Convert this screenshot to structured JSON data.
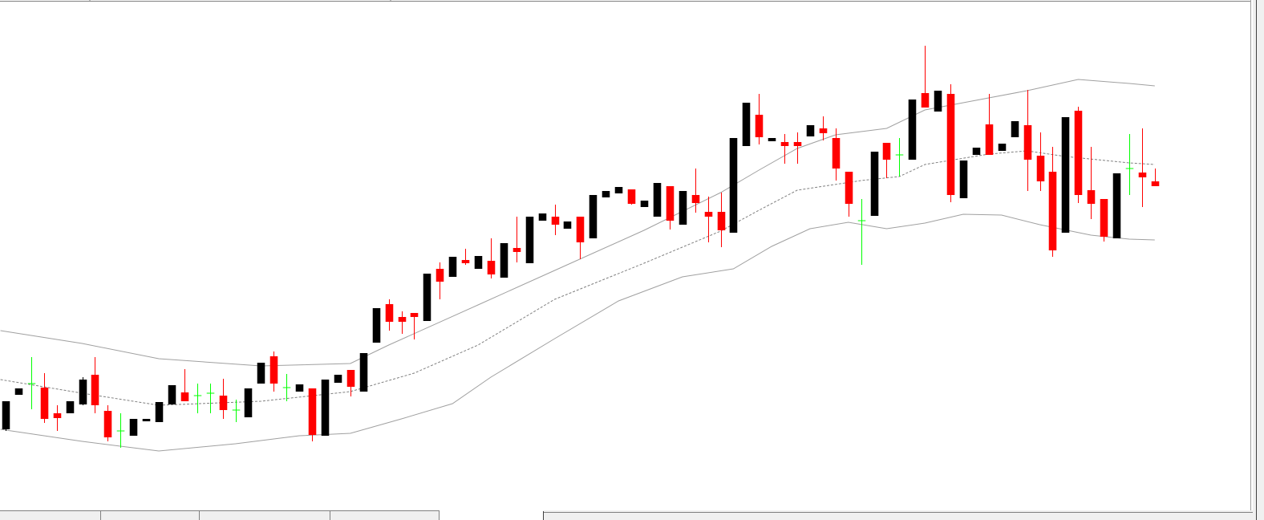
{
  "chart_data": {
    "type": "candlestick",
    "xlim": [
      -0.44,
      97.55
    ],
    "ylim": [
      0,
      640
    ],
    "up_color": "#000000",
    "down_color": "#ff0000",
    "doji_color": "#00ff00",
    "open": [
      105,
      148,
      162,
      157,
      125,
      125,
      136,
      173,
      128,
      103,
      97,
      115,
      114,
      136,
      151,
      147,
      150,
      147,
      129,
      120,
      162,
      196,
      157,
      152,
      156,
      97,
      163,
      179,
      152,
      213,
      261,
      245,
      250,
      240,
      305,
      295,
      316,
      305,
      315,
      294,
      331,
      312,
      365,
      370,
      355,
      370,
      343,
      394,
      399,
      404,
      382,
      370,
      408,
      360,
      397,
      376,
      376,
      350,
      458,
      497,
      464,
      463,
      463,
      470,
      480,
      468,
      426,
      365,
      371,
      462,
      447,
      441,
      524,
      501,
      523,
      393,
      447,
      485,
      452,
      469,
      484,
      446,
      426,
      350,
      502,
      403,
      392,
      343,
      430,
      425,
      414
    ],
    "high": [
      140,
      156,
      195,
      175,
      135,
      140,
      170,
      195,
      135,
      125,
      118,
      118,
      139,
      160,
      180,
      162,
      162,
      168,
      142,
      156,
      188,
      202,
      174,
      161,
      156,
      167,
      173,
      179,
      200,
      256,
      267,
      252,
      250,
      299,
      313,
      320,
      330,
      321,
      343,
      337,
      370,
      370,
      374,
      385,
      364,
      370,
      397,
      402,
      407,
      404,
      390,
      412,
      408,
      402,
      430,
      395,
      400,
      468,
      512,
      523,
      468,
      473,
      475,
      484,
      495,
      480,
      426,
      392,
      451,
      462,
      468,
      516,
      583,
      527,
      535,
      440,
      456,
      523,
      461,
      489,
      528,
      475,
      457,
      494,
      507,
      457,
      392,
      424,
      473,
      480,
      430
    ],
    "low": [
      103,
      148,
      130,
      113,
      103,
      125,
      135,
      125,
      90,
      82,
      97,
      115,
      114,
      136,
      140,
      125,
      125,
      118,
      114,
      120,
      162,
      152,
      140,
      152,
      90,
      97,
      163,
      146,
      152,
      213,
      228,
      224,
      217,
      240,
      267,
      295,
      310,
      305,
      293,
      294,
      313,
      312,
      365,
      347,
      355,
      317,
      343,
      394,
      399,
      385,
      382,
      370,
      354,
      360,
      375,
      338,
      332,
      350,
      458,
      460,
      464,
      436,
      436,
      470,
      465,
      415,
      370,
      310,
      371,
      418,
      420,
      441,
      506,
      501,
      388,
      393,
      447,
      447,
      452,
      469,
      402,
      402,
      320,
      350,
      387,
      367,
      339,
      343,
      397,
      382,
      408
    ],
    "close": [
      140,
      156,
      162,
      118,
      119,
      140,
      167,
      135,
      95,
      103,
      118,
      118,
      139,
      160,
      140,
      147,
      150,
      129,
      129,
      156,
      188,
      162,
      157,
      161,
      98,
      167,
      173,
      158,
      200,
      256,
      239,
      239,
      245,
      299,
      289,
      320,
      312,
      321,
      298,
      337,
      326,
      370,
      374,
      360,
      364,
      338,
      397,
      402,
      407,
      386,
      390,
      412,
      365,
      402,
      387,
      370,
      353,
      468,
      512,
      469,
      468,
      458,
      458,
      484,
      474,
      430,
      386,
      365,
      451,
      441,
      447,
      516,
      506,
      527,
      397,
      440,
      456,
      447,
      461,
      489,
      441,
      414,
      328,
      494,
      397,
      386,
      345,
      424,
      430,
      419,
      408
    ],
    "overlays": [
      {
        "color": "#a0a0a0",
        "dashed": false,
        "x": [
          -0.4,
          6,
          12,
          20,
          27,
          30,
          37,
          43,
          50,
          56,
          59,
          62,
          65,
          69,
          72,
          75,
          80,
          84,
          88,
          90
        ],
        "values": [
          228,
          212,
          193,
          184,
          187,
          210,
          260,
          303,
          353,
          400,
          428,
          455,
          472,
          480,
          503,
          512,
          527,
          541,
          536,
          533
        ]
      },
      {
        "color": "#808080",
        "dashed": true,
        "x": [
          -0.4,
          6,
          12,
          20,
          27,
          32,
          37,
          43,
          50,
          56,
          59,
          62,
          67,
          70,
          72,
          77,
          80,
          83,
          88,
          90
        ],
        "values": [
          167,
          150,
          135,
          140,
          152,
          175,
          210,
          267,
          312,
          352,
          378,
          403,
          415,
          420,
          435,
          448,
          452,
          445,
          437,
          435
        ]
      },
      {
        "color": "#a0a0a0",
        "dashed": false,
        "x": [
          -0.4,
          6,
          12,
          18,
          23,
          27,
          31,
          35,
          38,
          43,
          48,
          53,
          57,
          60,
          63,
          66,
          69,
          72,
          75,
          78,
          81,
          85,
          88,
          90
        ],
        "values": [
          105,
          90,
          78,
          87,
          97,
          100,
          118,
          137,
          170,
          218,
          265,
          295,
          305,
          333,
          355,
          363,
          355,
          362,
          373,
          372,
          360,
          347,
          342,
          341
        ]
      }
    ]
  }
}
